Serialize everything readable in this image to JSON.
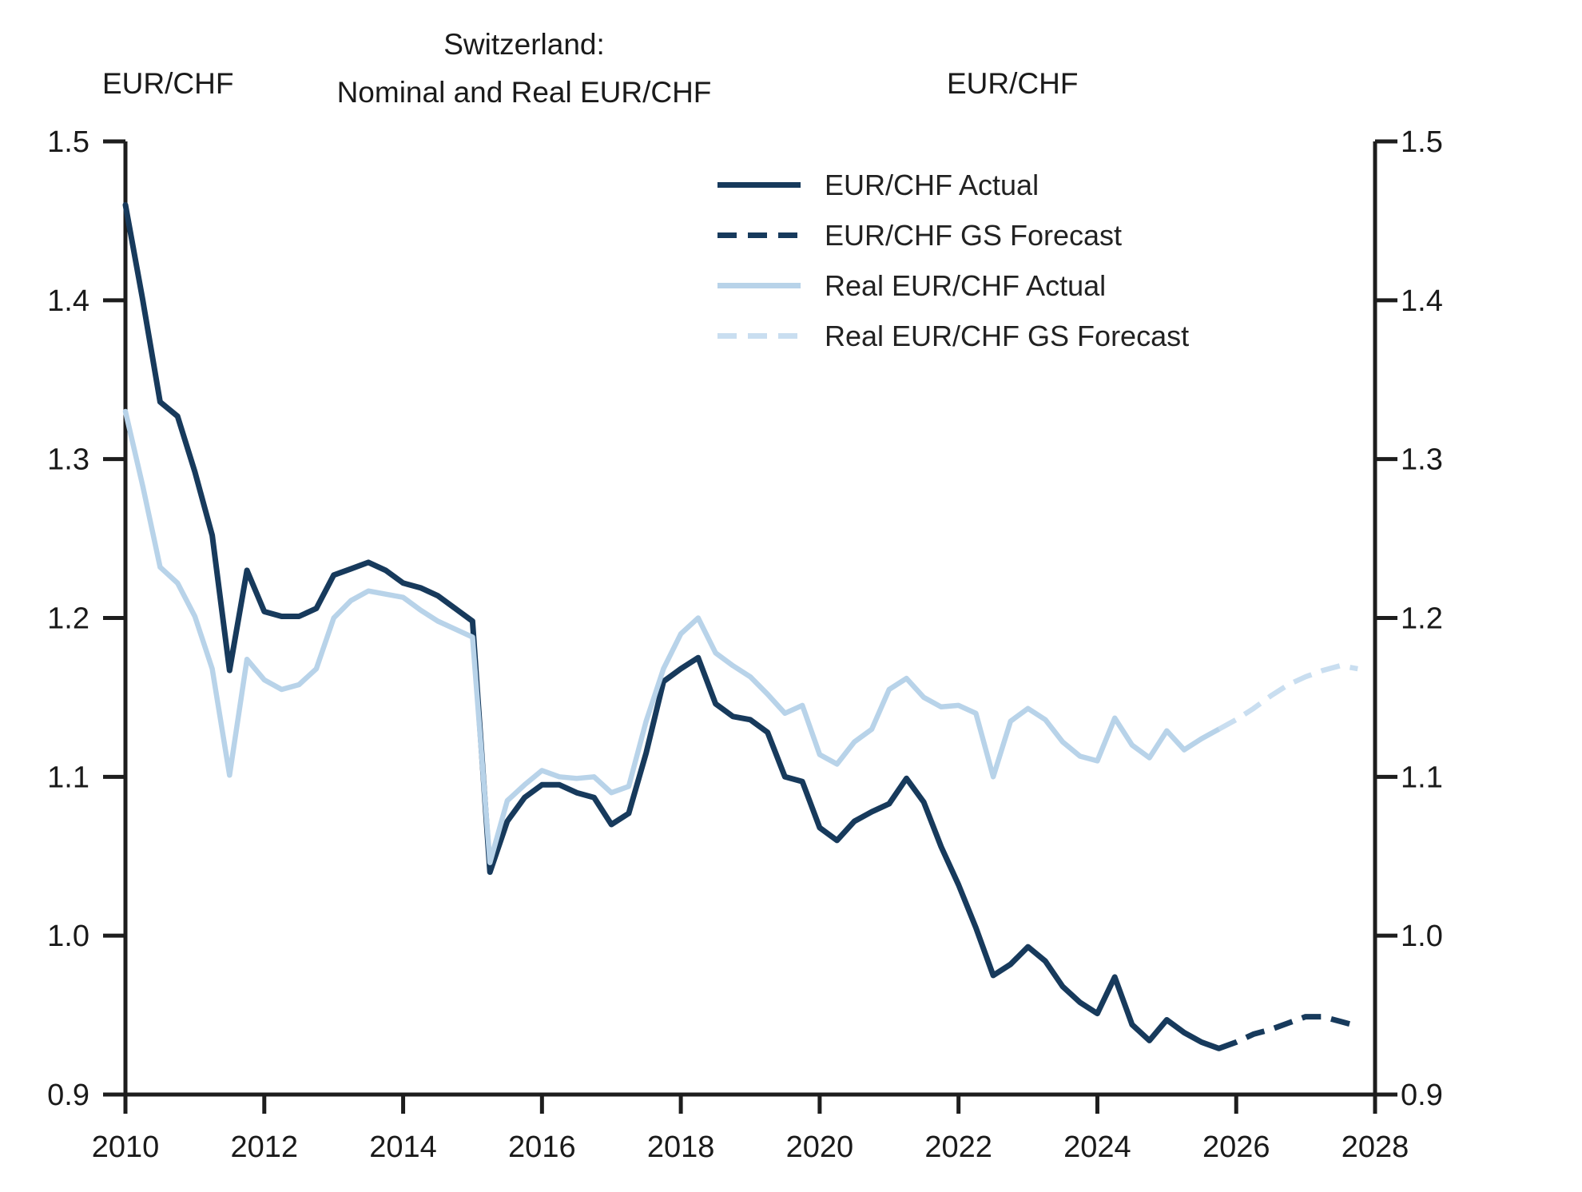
{
  "chart_data": {
    "type": "line",
    "title_line1": "Switzerland:",
    "title_line2": "Nominal and Real EUR/CHF",
    "title": "Switzerland: Nominal and Real EUR/CHF",
    "left_axis_label": "EUR/CHF",
    "right_axis_label": "EUR/CHF",
    "x_range": [
      2010,
      2028
    ],
    "y_range": [
      0.9,
      1.5
    ],
    "x_ticks": [
      2010,
      2012,
      2014,
      2016,
      2018,
      2020,
      2022,
      2024,
      2026,
      2028
    ],
    "y_ticks": [
      0.9,
      1.0,
      1.1,
      1.2,
      1.3,
      1.4,
      1.5
    ],
    "grid": false,
    "legend_position": "upper center",
    "axis_color": "#1d1d1d",
    "series": [
      {
        "name": "EUR/CHF Actual",
        "color": "#173a5c",
        "style": "solid",
        "width": 7,
        "points": [
          [
            2010.0,
            1.46
          ],
          [
            2010.25,
            1.4
          ],
          [
            2010.5,
            1.336
          ],
          [
            2010.75,
            1.327
          ],
          [
            2011.0,
            1.292
          ],
          [
            2011.25,
            1.252
          ],
          [
            2011.5,
            1.167
          ],
          [
            2011.75,
            1.23
          ],
          [
            2012.0,
            1.204
          ],
          [
            2012.25,
            1.201
          ],
          [
            2012.5,
            1.201
          ],
          [
            2012.75,
            1.206
          ],
          [
            2013.0,
            1.227
          ],
          [
            2013.25,
            1.231
          ],
          [
            2013.5,
            1.235
          ],
          [
            2013.75,
            1.23
          ],
          [
            2014.0,
            1.222
          ],
          [
            2014.25,
            1.219
          ],
          [
            2014.5,
            1.214
          ],
          [
            2014.75,
            1.206
          ],
          [
            2015.0,
            1.198
          ],
          [
            2015.25,
            1.04
          ],
          [
            2015.5,
            1.072
          ],
          [
            2015.75,
            1.087
          ],
          [
            2016.0,
            1.095
          ],
          [
            2016.25,
            1.095
          ],
          [
            2016.5,
            1.09
          ],
          [
            2016.75,
            1.087
          ],
          [
            2017.0,
            1.07
          ],
          [
            2017.25,
            1.077
          ],
          [
            2017.5,
            1.115
          ],
          [
            2017.75,
            1.16
          ],
          [
            2018.0,
            1.168
          ],
          [
            2018.25,
            1.175
          ],
          [
            2018.5,
            1.146
          ],
          [
            2018.75,
            1.138
          ],
          [
            2019.0,
            1.136
          ],
          [
            2019.25,
            1.128
          ],
          [
            2019.5,
            1.1
          ],
          [
            2019.75,
            1.097
          ],
          [
            2020.0,
            1.068
          ],
          [
            2020.25,
            1.06
          ],
          [
            2020.5,
            1.072
          ],
          [
            2020.75,
            1.078
          ],
          [
            2021.0,
            1.083
          ],
          [
            2021.25,
            1.099
          ],
          [
            2021.5,
            1.084
          ],
          [
            2021.75,
            1.056
          ],
          [
            2022.0,
            1.032
          ],
          [
            2022.25,
            1.005
          ],
          [
            2022.5,
            0.975
          ],
          [
            2022.75,
            0.982
          ],
          [
            2023.0,
            0.993
          ],
          [
            2023.25,
            0.984
          ],
          [
            2023.5,
            0.968
          ],
          [
            2023.75,
            0.958
          ],
          [
            2024.0,
            0.951
          ],
          [
            2024.25,
            0.974
          ],
          [
            2024.5,
            0.944
          ],
          [
            2024.75,
            0.934
          ],
          [
            2025.0,
            0.947
          ],
          [
            2025.25,
            0.939
          ],
          [
            2025.5,
            0.933
          ],
          [
            2025.75,
            0.929
          ]
        ]
      },
      {
        "name": "EUR/CHF GS Forecast",
        "color": "#173a5c",
        "style": "dashed",
        "width": 7,
        "points": [
          [
            2025.75,
            0.929
          ],
          [
            2026.0,
            0.933
          ],
          [
            2026.25,
            0.938
          ],
          [
            2026.5,
            0.941
          ],
          [
            2026.75,
            0.945
          ],
          [
            2027.0,
            0.949
          ],
          [
            2027.25,
            0.949
          ],
          [
            2027.5,
            0.946
          ],
          [
            2027.75,
            0.943
          ]
        ]
      },
      {
        "name": "Real EUR/CHF Actual",
        "color": "#b8d3e9",
        "style": "solid",
        "width": 6.5,
        "points": [
          [
            2010.0,
            1.33
          ],
          [
            2010.25,
            1.283
          ],
          [
            2010.5,
            1.232
          ],
          [
            2010.75,
            1.222
          ],
          [
            2011.0,
            1.201
          ],
          [
            2011.25,
            1.168
          ],
          [
            2011.5,
            1.101
          ],
          [
            2011.75,
            1.174
          ],
          [
            2012.0,
            1.161
          ],
          [
            2012.25,
            1.155
          ],
          [
            2012.5,
            1.158
          ],
          [
            2012.75,
            1.168
          ],
          [
            2013.0,
            1.2
          ],
          [
            2013.25,
            1.211
          ],
          [
            2013.5,
            1.217
          ],
          [
            2013.75,
            1.215
          ],
          [
            2014.0,
            1.213
          ],
          [
            2014.25,
            1.205
          ],
          [
            2014.5,
            1.198
          ],
          [
            2014.75,
            1.193
          ],
          [
            2015.0,
            1.188
          ],
          [
            2015.25,
            1.046
          ],
          [
            2015.5,
            1.085
          ],
          [
            2015.75,
            1.095
          ],
          [
            2016.0,
            1.104
          ],
          [
            2016.25,
            1.1
          ],
          [
            2016.5,
            1.099
          ],
          [
            2016.75,
            1.1
          ],
          [
            2017.0,
            1.09
          ],
          [
            2017.25,
            1.094
          ],
          [
            2017.5,
            1.135
          ],
          [
            2017.75,
            1.168
          ],
          [
            2018.0,
            1.19
          ],
          [
            2018.25,
            1.2
          ],
          [
            2018.5,
            1.178
          ],
          [
            2018.75,
            1.17
          ],
          [
            2019.0,
            1.163
          ],
          [
            2019.25,
            1.152
          ],
          [
            2019.5,
            1.14
          ],
          [
            2019.75,
            1.145
          ],
          [
            2020.0,
            1.114
          ],
          [
            2020.25,
            1.108
          ],
          [
            2020.5,
            1.122
          ],
          [
            2020.75,
            1.13
          ],
          [
            2021.0,
            1.155
          ],
          [
            2021.25,
            1.162
          ],
          [
            2021.5,
            1.15
          ],
          [
            2021.75,
            1.144
          ],
          [
            2022.0,
            1.145
          ],
          [
            2022.25,
            1.14
          ],
          [
            2022.5,
            1.1
          ],
          [
            2022.75,
            1.135
          ],
          [
            2023.0,
            1.143
          ],
          [
            2023.25,
            1.136
          ],
          [
            2023.5,
            1.122
          ],
          [
            2023.75,
            1.113
          ],
          [
            2024.0,
            1.11
          ],
          [
            2024.25,
            1.137
          ],
          [
            2024.5,
            1.12
          ],
          [
            2024.75,
            1.112
          ],
          [
            2025.0,
            1.129
          ],
          [
            2025.25,
            1.117
          ],
          [
            2025.5,
            1.124
          ],
          [
            2025.75,
            1.13
          ]
        ]
      },
      {
        "name": "Real EUR/CHF GS Forecast",
        "color": "#c9def0",
        "style": "dashed",
        "width": 6.5,
        "points": [
          [
            2025.75,
            1.13
          ],
          [
            2026.0,
            1.136
          ],
          [
            2026.25,
            1.143
          ],
          [
            2026.5,
            1.151
          ],
          [
            2026.75,
            1.158
          ],
          [
            2027.0,
            1.163
          ],
          [
            2027.25,
            1.167
          ],
          [
            2027.5,
            1.17
          ],
          [
            2027.75,
            1.168
          ]
        ]
      }
    ]
  }
}
